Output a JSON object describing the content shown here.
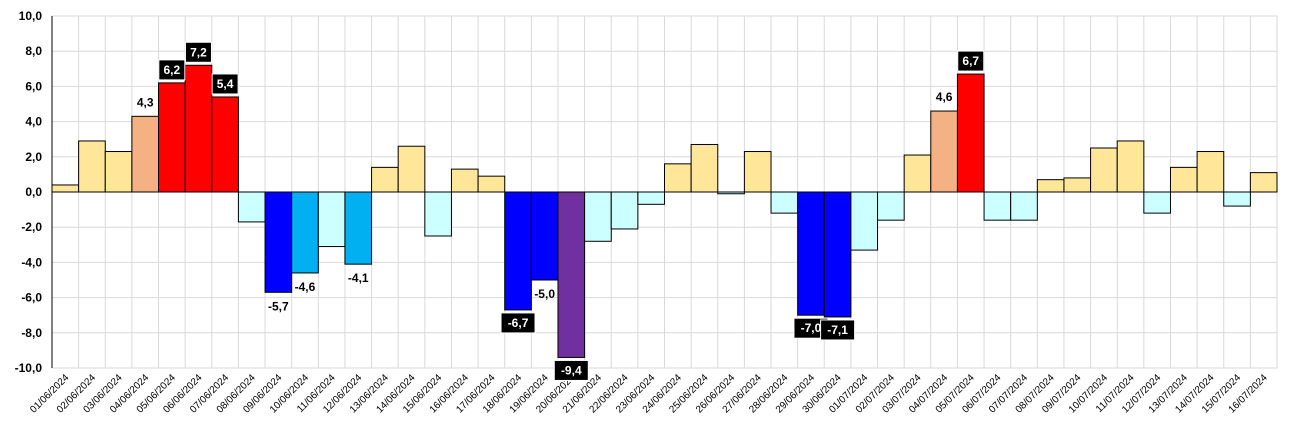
{
  "chart_data": {
    "type": "bar",
    "title": "",
    "xlabel": "",
    "ylabel": "",
    "ylim": [
      -10,
      10
    ],
    "ytick_step": 2,
    "ytick_labels": [
      "10,0",
      "8,0",
      "6,0",
      "4,0",
      "2,0",
      "0,0",
      "-2,0",
      "-4,0",
      "-6,0",
      "-8,0",
      "-10,0"
    ],
    "grid": true,
    "colors": {
      "light_yellow": "#ffe699",
      "salmon": "#f4b183",
      "red": "#ff0000",
      "light_cyan": "#ccffff",
      "sky_blue": "#00b0f0",
      "blue": "#0000ff",
      "purple": "#7030a0"
    },
    "categories": [
      "01/06/2024",
      "02/06/2024",
      "03/06/2024",
      "04/06/2024",
      "05/06/2024",
      "06/06/2024",
      "07/06/2024",
      "08/06/2024",
      "09/06/2024",
      "10/06/2024",
      "11/06/2024",
      "12/06/2024",
      "13/06/2024",
      "14/06/2024",
      "15/06/2024",
      "16/06/2024",
      "17/06/2024",
      "18/06/2024",
      "19/06/2024",
      "20/06/2024",
      "21/06/2024",
      "22/06/2024",
      "23/06/2024",
      "24/06/2024",
      "25/06/2024",
      "26/06/2024",
      "27/06/2024",
      "28/06/2024",
      "29/06/2024",
      "30/06/2024",
      "01/07/2024",
      "02/07/2024",
      "03/07/2024",
      "04/07/2024",
      "05/07/2024",
      "06/07/2024",
      "07/07/2024",
      "08/07/2024",
      "09/07/2024",
      "10/07/2024",
      "11/07/2024",
      "12/07/2024",
      "13/07/2024",
      "14/07/2024",
      "15/07/2024",
      "16/07/2024"
    ],
    "values": [
      0.4,
      2.9,
      2.3,
      4.3,
      6.2,
      7.2,
      5.4,
      -1.7,
      -5.7,
      -4.6,
      -3.1,
      -4.1,
      1.4,
      2.6,
      -2.5,
      1.3,
      0.9,
      -6.7,
      -5.0,
      -9.4,
      -2.8,
      -2.1,
      -0.7,
      1.6,
      2.7,
      -0.1,
      2.3,
      -1.2,
      -7.0,
      -7.1,
      -3.3,
      -1.6,
      2.1,
      4.6,
      6.7,
      -1.6,
      -1.6,
      0.7,
      0.8,
      2.5,
      2.9,
      -1.2,
      1.4,
      2.3,
      -0.8,
      1.1
    ],
    "bar_colors": [
      "light_yellow",
      "light_yellow",
      "light_yellow",
      "salmon",
      "red",
      "red",
      "red",
      "light_cyan",
      "blue",
      "sky_blue",
      "light_cyan",
      "sky_blue",
      "light_yellow",
      "light_yellow",
      "light_cyan",
      "light_yellow",
      "light_yellow",
      "blue",
      "blue",
      "purple",
      "light_cyan",
      "light_cyan",
      "light_cyan",
      "light_yellow",
      "light_yellow",
      "light_cyan",
      "light_yellow",
      "light_cyan",
      "blue",
      "blue",
      "light_cyan",
      "light_cyan",
      "light_yellow",
      "salmon",
      "red",
      "light_cyan",
      "light_cyan",
      "light_yellow",
      "light_yellow",
      "light_yellow",
      "light_yellow",
      "light_cyan",
      "light_yellow",
      "light_yellow",
      "light_cyan",
      "light_yellow"
    ],
    "data_labels": [
      {
        "index": 3,
        "text": "4,3",
        "style": "plain"
      },
      {
        "index": 4,
        "text": "6,2",
        "style": "boxed"
      },
      {
        "index": 5,
        "text": "7,2",
        "style": "boxed"
      },
      {
        "index": 6,
        "text": "5,4",
        "style": "boxed"
      },
      {
        "index": 8,
        "text": "-5,7",
        "style": "plain"
      },
      {
        "index": 9,
        "text": "-4,6",
        "style": "plain"
      },
      {
        "index": 11,
        "text": "-4,1",
        "style": "plain"
      },
      {
        "index": 17,
        "text": "-6,7",
        "style": "boxed"
      },
      {
        "index": 18,
        "text": "-5,0",
        "style": "plain"
      },
      {
        "index": 19,
        "text": "-9,4",
        "style": "boxed"
      },
      {
        "index": 28,
        "text": "-7,0",
        "style": "boxed"
      },
      {
        "index": 29,
        "text": "-7,1",
        "style": "boxed"
      },
      {
        "index": 33,
        "text": "4,6",
        "style": "plain"
      },
      {
        "index": 34,
        "text": "6,7",
        "style": "boxed"
      }
    ]
  }
}
